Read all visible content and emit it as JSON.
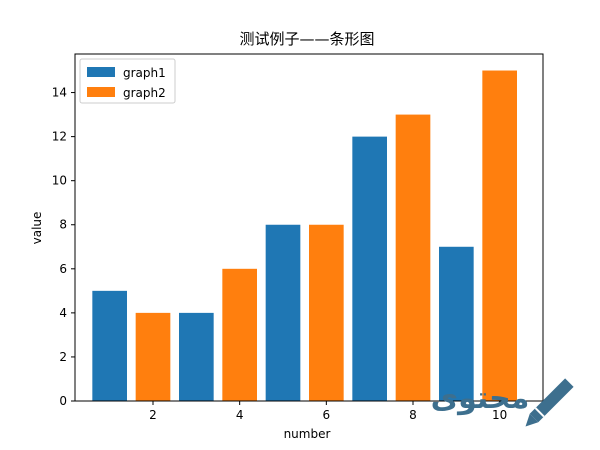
{
  "chart_data": {
    "type": "bar",
    "title": "测试例子——条形图",
    "xlabel": "number",
    "ylabel": "value",
    "xlim": [
      0.2,
      11.0
    ],
    "ylim": [
      0,
      15.75
    ],
    "xticks": [
      2,
      4,
      6,
      8,
      10
    ],
    "yticks": [
      0,
      2,
      4,
      6,
      8,
      10,
      12,
      14
    ],
    "grid": false,
    "legend_position": "top-left",
    "series": [
      {
        "name": "graph1",
        "color": "#1f77b4",
        "x": [
          1,
          3,
          5,
          7,
          9
        ],
        "values": [
          5,
          4,
          8,
          12,
          7
        ]
      },
      {
        "name": "graph2",
        "color": "#ff7f0e",
        "x": [
          2,
          4,
          6,
          8,
          10
        ],
        "values": [
          4,
          6,
          8,
          13,
          15
        ]
      }
    ]
  },
  "watermark": {
    "text": "محتوى",
    "icon": "pen-icon",
    "color": "#3d6f8e"
  }
}
